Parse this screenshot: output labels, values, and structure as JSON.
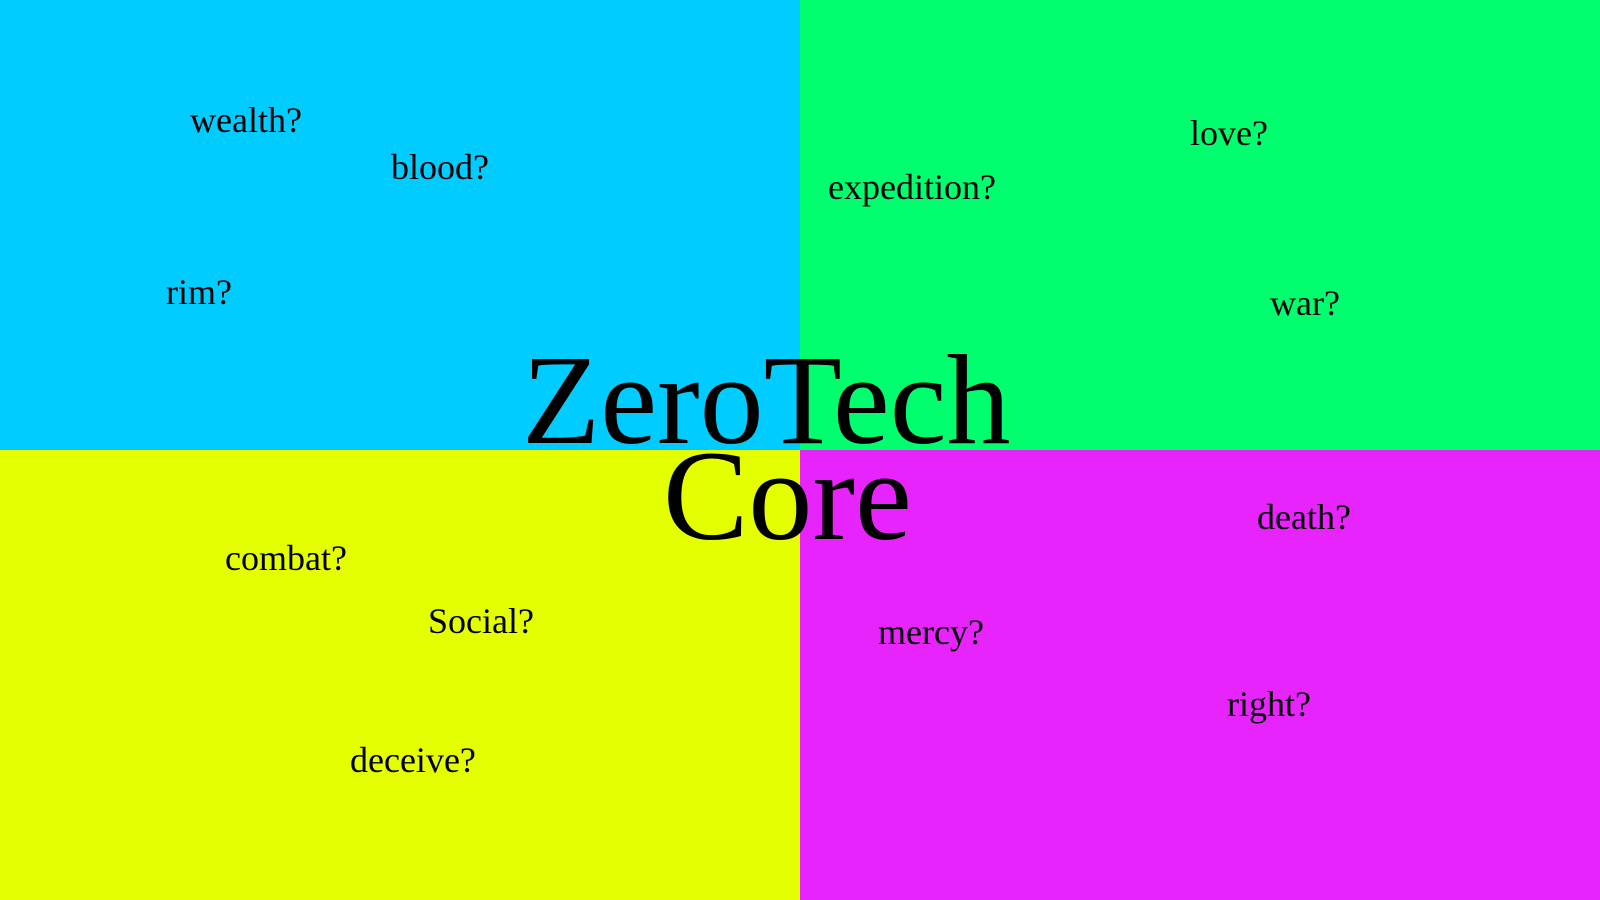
{
  "colors": {
    "top_left": "#00ccff",
    "top_right": "#00ff6e",
    "bottom_left": "#e4ff00",
    "bottom_right": "#e824fd",
    "text": "#000000"
  },
  "title": {
    "line1": "ZeroTech",
    "line2": "Core"
  },
  "quadrants": {
    "top_left": [
      "wealth?",
      "blood?",
      "rim?"
    ],
    "top_right": [
      "love?",
      "expedition?",
      "war?"
    ],
    "bottom_left": [
      "combat?",
      "Social?",
      "deceive?"
    ],
    "bottom_right": [
      "death?",
      "mercy?",
      "right?"
    ]
  }
}
